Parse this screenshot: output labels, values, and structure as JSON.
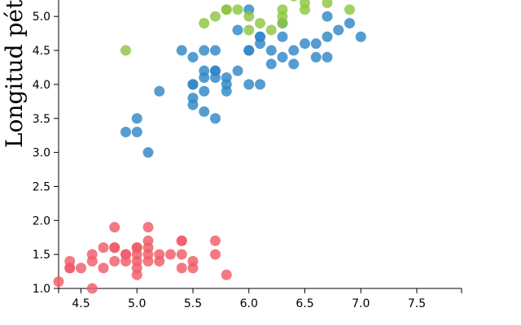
{
  "chart_data": {
    "type": "scatter",
    "title": "",
    "xlabel": "",
    "ylabel": "Longitud péta",
    "xlim": [
      4.3,
      7.9
    ],
    "ylim": [
      1.0,
      5.4
    ],
    "x_ticks": [
      "4.5",
      "5.0",
      "5.5",
      "6.0",
      "6.5",
      "7.0",
      "7.5"
    ],
    "y_ticks": [
      "1.0",
      "1.5",
      "2.0",
      "2.5",
      "3.0",
      "3.5",
      "4.0",
      "4.5",
      "5.0"
    ],
    "series": [
      {
        "color": "#f05b68",
        "points": [
          [
            4.3,
            1.1
          ],
          [
            4.4,
            1.4
          ],
          [
            4.4,
            1.3
          ],
          [
            4.4,
            1.3
          ],
          [
            4.5,
            1.3
          ],
          [
            4.6,
            1.0
          ],
          [
            4.6,
            1.5
          ],
          [
            4.6,
            1.4
          ],
          [
            4.7,
            1.6
          ],
          [
            4.7,
            1.3
          ],
          [
            4.8,
            1.9
          ],
          [
            4.8,
            1.6
          ],
          [
            4.8,
            1.4
          ],
          [
            4.8,
            1.6
          ],
          [
            4.9,
            1.5
          ],
          [
            4.9,
            1.4
          ],
          [
            4.9,
            1.5
          ],
          [
            5.0,
            1.6
          ],
          [
            5.0,
            1.5
          ],
          [
            5.0,
            1.4
          ],
          [
            5.0,
            1.3
          ],
          [
            5.0,
            1.2
          ],
          [
            5.0,
            1.6
          ],
          [
            5.1,
            1.9
          ],
          [
            5.1,
            1.7
          ],
          [
            5.1,
            1.5
          ],
          [
            5.1,
            1.4
          ],
          [
            5.1,
            1.6
          ],
          [
            5.2,
            1.5
          ],
          [
            5.2,
            1.4
          ],
          [
            5.3,
            1.5
          ],
          [
            5.4,
            1.7
          ],
          [
            5.4,
            1.3
          ],
          [
            5.4,
            1.5
          ],
          [
            5.4,
            1.7
          ],
          [
            5.5,
            1.4
          ],
          [
            5.5,
            1.3
          ],
          [
            5.7,
            1.5
          ],
          [
            5.7,
            1.7
          ],
          [
            5.8,
            1.2
          ]
        ]
      },
      {
        "color": "#2f88c6",
        "points": [
          [
            4.9,
            3.3
          ],
          [
            5.0,
            3.5
          ],
          [
            5.0,
            3.3
          ],
          [
            5.1,
            3.0
          ],
          [
            5.2,
            3.9
          ],
          [
            5.4,
            4.5
          ],
          [
            5.5,
            4.4
          ],
          [
            5.5,
            4.0
          ],
          [
            5.5,
            3.8
          ],
          [
            5.5,
            3.7
          ],
          [
            5.5,
            4.0
          ],
          [
            5.6,
            4.5
          ],
          [
            5.6,
            4.2
          ],
          [
            5.6,
            4.1
          ],
          [
            5.6,
            3.9
          ],
          [
            5.6,
            3.6
          ],
          [
            5.7,
            4.5
          ],
          [
            5.7,
            4.2
          ],
          [
            5.7,
            4.2
          ],
          [
            5.7,
            4.1
          ],
          [
            5.7,
            3.5
          ],
          [
            5.8,
            4.1
          ],
          [
            5.8,
            4.0
          ],
          [
            5.8,
            3.9
          ],
          [
            5.9,
            4.8
          ],
          [
            5.9,
            4.2
          ],
          [
            6.0,
            5.1
          ],
          [
            6.0,
            4.5
          ],
          [
            6.0,
            4.0
          ],
          [
            6.0,
            4.5
          ],
          [
            6.1,
            4.7
          ],
          [
            6.1,
            4.6
          ],
          [
            6.1,
            4.0
          ],
          [
            6.1,
            4.7
          ],
          [
            6.2,
            4.5
          ],
          [
            6.2,
            4.3
          ],
          [
            6.3,
            4.7
          ],
          [
            6.3,
            4.4
          ],
          [
            6.3,
            4.9
          ],
          [
            6.4,
            4.5
          ],
          [
            6.4,
            4.3
          ],
          [
            6.5,
            4.6
          ],
          [
            6.6,
            4.6
          ],
          [
            6.6,
            4.4
          ],
          [
            6.7,
            4.7
          ],
          [
            6.7,
            4.4
          ],
          [
            6.7,
            5.0
          ],
          [
            6.8,
            4.8
          ],
          [
            6.9,
            4.9
          ],
          [
            7.0,
            4.7
          ]
        ]
      },
      {
        "color": "#8dc63f",
        "points": [
          [
            4.9,
            4.5
          ],
          [
            5.6,
            4.9
          ],
          [
            5.7,
            5.0
          ],
          [
            5.8,
            5.1
          ],
          [
            5.8,
            5.1
          ],
          [
            5.9,
            5.1
          ],
          [
            6.0,
            4.8
          ],
          [
            6.0,
            5.0
          ],
          [
            6.1,
            4.9
          ],
          [
            6.2,
            4.8
          ],
          [
            6.3,
            4.9
          ],
          [
            6.3,
            5.0
          ],
          [
            6.3,
            5.1
          ],
          [
            6.4,
            5.3
          ],
          [
            6.5,
            5.2
          ],
          [
            6.5,
            5.1
          ],
          [
            6.7,
            5.2
          ],
          [
            6.9,
            5.1
          ]
        ]
      }
    ]
  }
}
